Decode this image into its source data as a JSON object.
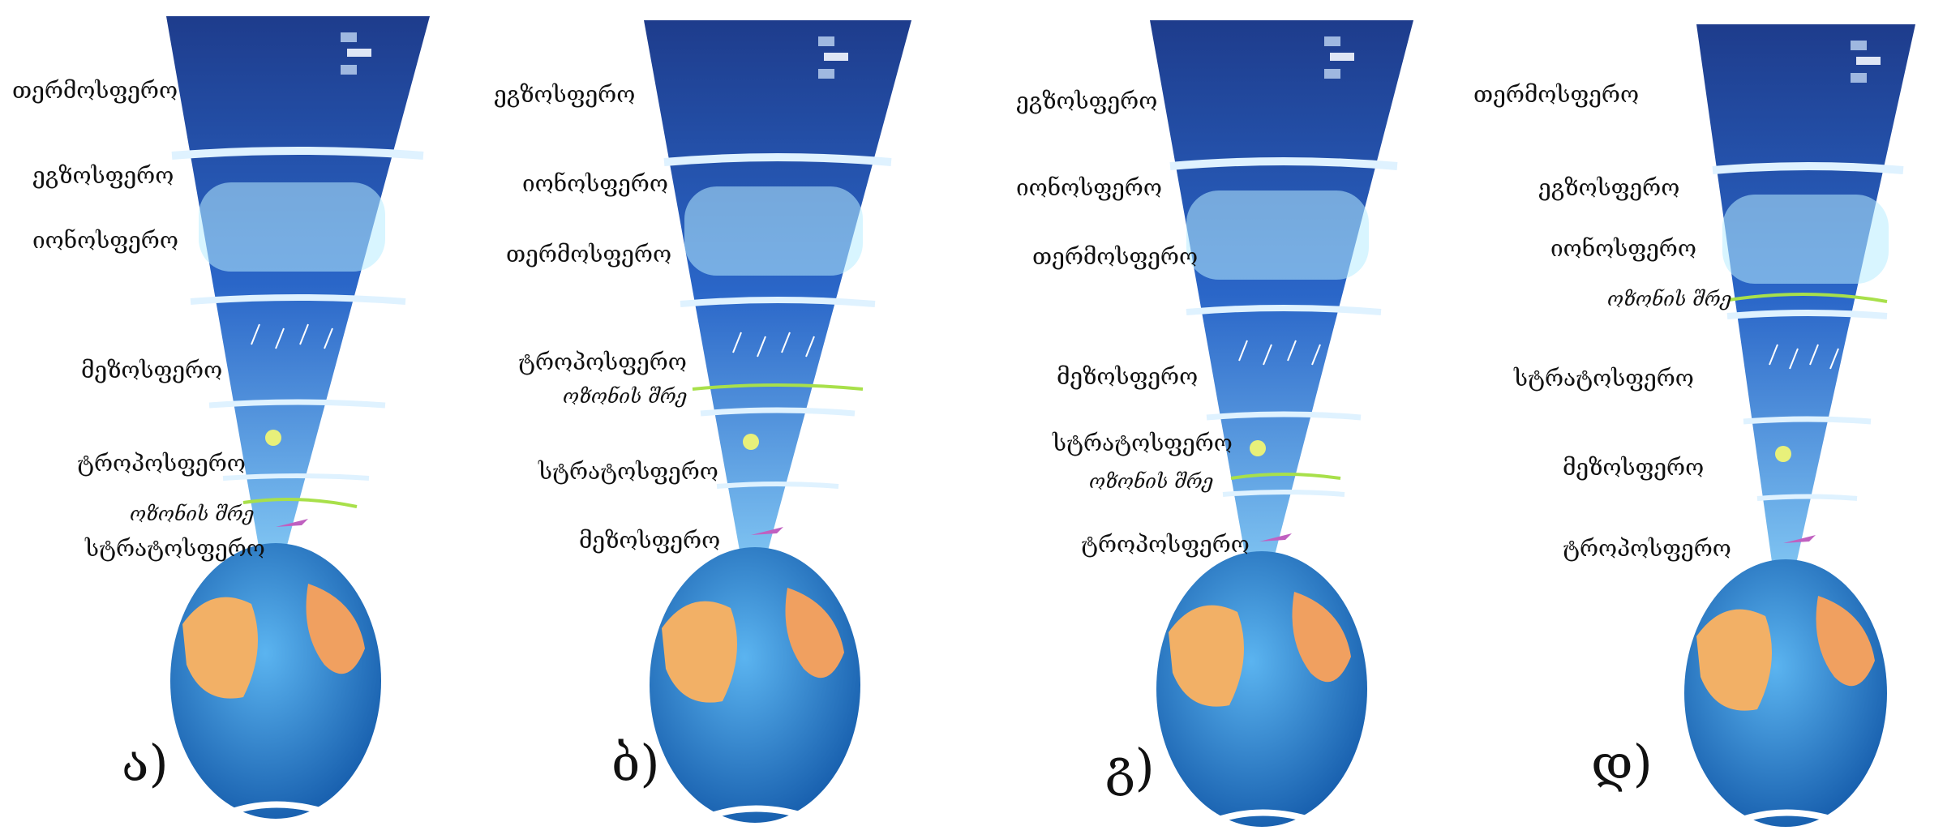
{
  "panels": [
    {
      "letter": "ა)",
      "labels": [
        "თერმოსფერო",
        "ეგზოსფერო",
        "იონოსფერო",
        "მეზოსფერო",
        "ტროპოსფერო",
        "ოზონის შრე",
        "სტრატოსფერო"
      ]
    },
    {
      "letter": "ბ)",
      "labels": [
        "ეგზოსფერო",
        "იონოსფერო",
        "თერმოსფერო",
        "ტროპოსფერო",
        "ოზონის შრე",
        "სტრატოსფერო",
        "მეზოსფერო"
      ]
    },
    {
      "letter": "გ)",
      "labels": [
        "ეგზოსფერო",
        "იონოსფერო",
        "თერმოსფერო",
        "მეზოსფერო",
        "სტრატოსფერო",
        "ოზონის შრე",
        "ტროპოსფერო"
      ]
    },
    {
      "letter": "დ)",
      "labels": [
        "თერმოსფერო",
        "ეგზოსფერო",
        "იონოსფერო",
        "ოზონის შრე",
        "სტრატოსფერო",
        "მეზოსფერო",
        "ტროპოსფერო"
      ]
    }
  ],
  "colors": {
    "space": "#1f3f8f",
    "layer_mid": "#2f6fd0",
    "layer_low": "#57a8ec",
    "ocean": "#2c82cf",
    "land": "#f2b066",
    "ozone": "#a8e04a"
  }
}
